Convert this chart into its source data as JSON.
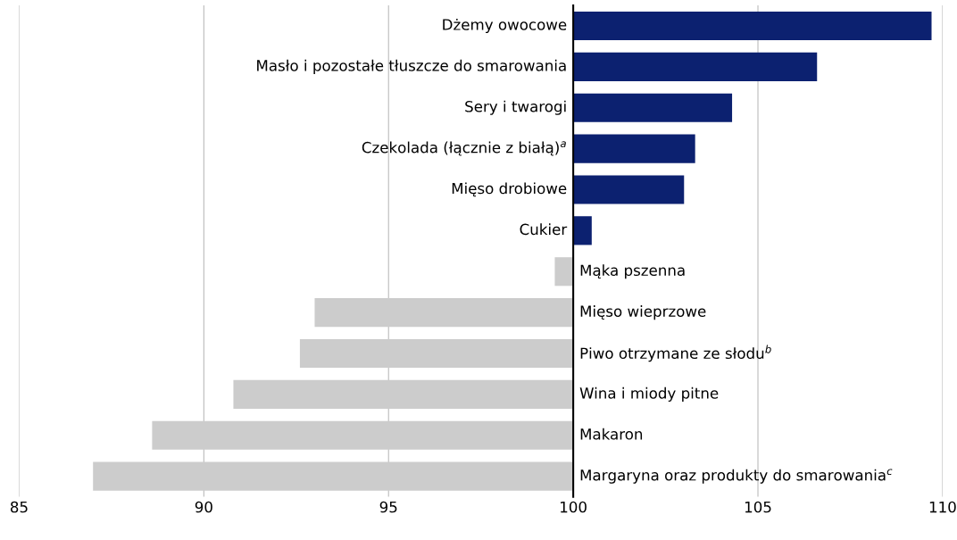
{
  "chart_data": {
    "type": "bar",
    "orientation": "horizontal",
    "categories": [
      "Dżemy owocowe",
      "Masło i pozostałe tłuszcze do smarowania",
      "Sery i twarogi",
      "Czekolada (łącznie z białą)$^{a}$",
      "Mięso drobiowe",
      "Cukier",
      "Mąka pszenna",
      "Mięso wieprzowe",
      "Piwo otrzymane ze słodu$^{b}$",
      "Wina i miody pitne",
      "Makaron",
      "Margaryna oraz produkty do smarowania$^{c}$"
    ],
    "base": [
      100,
      100,
      100,
      100,
      100,
      100,
      100,
      100,
      100,
      100,
      100,
      100
    ],
    "values": [
      9.7,
      6.6,
      4.3,
      3.3,
      3.0,
      0.5,
      -0.5,
      -7.0,
      -7.4,
      -9.2,
      -11.4,
      -13.0
    ],
    "colors": [
      "#0c2170",
      "#0c2170",
      "#0c2170",
      "#0c2170",
      "#0c2170",
      "#0c2170",
      "#cccccc",
      "#cccccc",
      "#cccccc",
      "#cccccc",
      "#cccccc",
      "#cccccc"
    ],
    "xlim": [
      85,
      110
    ],
    "xticks": [
      85,
      90,
      95,
      100,
      105,
      110
    ],
    "grid": "x"
  }
}
